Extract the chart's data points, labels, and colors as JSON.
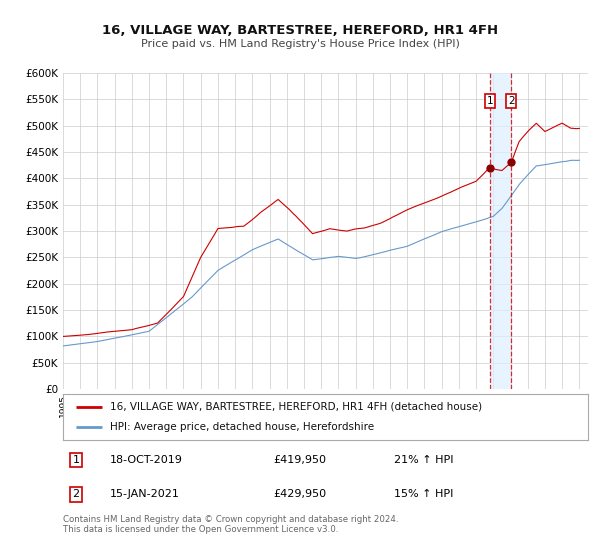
{
  "title": "16, VILLAGE WAY, BARTESTREE, HEREFORD, HR1 4FH",
  "subtitle": "Price paid vs. HM Land Registry's House Price Index (HPI)",
  "ylim": [
    0,
    600000
  ],
  "yticks": [
    0,
    50000,
    100000,
    150000,
    200000,
    250000,
    300000,
    350000,
    400000,
    450000,
    500000,
    550000,
    600000
  ],
  "xlim_start": 1995.0,
  "xlim_end": 2025.5,
  "property_color": "#cc0000",
  "hpi_color": "#6699cc",
  "background_color": "#ffffff",
  "grid_color": "#cccccc",
  "shade_color": "#ddeeff",
  "legend_label_property": "16, VILLAGE WAY, BARTESTREE, HEREFORD, HR1 4FH (detached house)",
  "legend_label_hpi": "HPI: Average price, detached house, Herefordshire",
  "sale1_date_x": 2019.79,
  "sale1_price": 419950,
  "sale2_date_x": 2021.04,
  "sale2_price": 429950,
  "sale1_text": "18-OCT-2019",
  "sale1_price_text": "£419,950",
  "sale1_hpi_text": "21% ↑ HPI",
  "sale2_text": "15-JAN-2021",
  "sale2_price_text": "£429,950",
  "sale2_hpi_text": "15% ↑ HPI",
  "footer": "Contains HM Land Registry data © Crown copyright and database right 2024.\nThis data is licensed under the Open Government Licence v3.0."
}
